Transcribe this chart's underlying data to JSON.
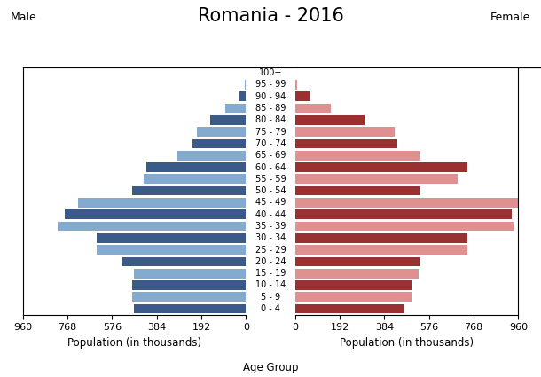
{
  "title": "Romania - 2016",
  "male_label": "Male",
  "female_label": "Female",
  "xlabel_left": "Population (in thousands)",
  "xlabel_center": "Age Group",
  "xlabel_right": "Population (in thousands)",
  "age_groups": [
    "0 - 4",
    "5 - 9",
    "10 - 14",
    "15 - 19",
    "20 - 24",
    "25 - 29",
    "30 - 34",
    "35 - 39",
    "40 - 44",
    "45 - 49",
    "50 - 54",
    "55 - 59",
    "60 - 64",
    "65 - 69",
    "70 - 74",
    "75 - 79",
    "80 - 84",
    "85 - 89",
    "90 - 94",
    "95 - 99",
    "100+"
  ],
  "male_values": [
    480,
    490,
    490,
    480,
    530,
    640,
    640,
    810,
    780,
    720,
    490,
    440,
    430,
    295,
    230,
    210,
    155,
    90,
    30,
    5,
    2
  ],
  "female_values": [
    470,
    500,
    500,
    530,
    540,
    740,
    740,
    940,
    930,
    960,
    540,
    700,
    740,
    540,
    440,
    430,
    300,
    155,
    65,
    10,
    2
  ],
  "male_dark": "#3a5a8a",
  "male_light": "#85aad0",
  "female_dark": "#9b3030",
  "female_light": "#e09090",
  "xlim": 960,
  "xticks": [
    0,
    192,
    384,
    576,
    768,
    960
  ],
  "background_color": "#ffffff",
  "title_fontsize": 15,
  "bar_height": 0.8
}
